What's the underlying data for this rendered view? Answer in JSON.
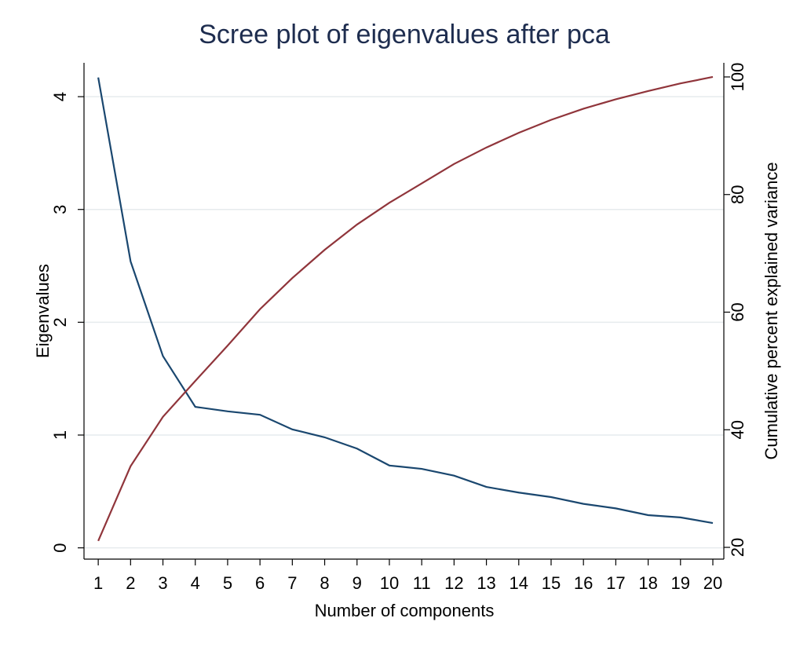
{
  "chart_data": {
    "type": "line",
    "title": "Scree plot of eigenvalues after pca",
    "x_label": "Number of components",
    "y_label": "Eigenvalues",
    "y2_label": "Cumulative percent explained variance",
    "x": [
      1,
      2,
      3,
      4,
      5,
      6,
      7,
      8,
      9,
      10,
      11,
      12,
      13,
      14,
      15,
      16,
      17,
      18,
      19,
      20
    ],
    "series": [
      {
        "name": "Eigenvalues",
        "color": "#1a476f",
        "values": [
          4.17,
          2.54,
          1.7,
          1.25,
          1.21,
          1.18,
          1.05,
          0.98,
          0.88,
          0.73,
          0.7,
          0.64,
          0.54,
          0.49,
          0.45,
          0.39,
          0.35,
          0.29,
          0.27,
          0.22
        ]
      },
      {
        "name": "Cumulative percent explained variance",
        "color": "#90353b",
        "axis": "y2",
        "values": [
          21.1,
          33.8,
          42.2,
          48.3,
          54.3,
          60.5,
          65.8,
          70.6,
          74.9,
          78.6,
          81.9,
          85.2,
          88.0,
          90.5,
          92.7,
          94.6,
          96.2,
          97.6,
          98.9,
          100
        ]
      }
    ],
    "xlim": [
      0.56,
      20.34
    ],
    "xticks": [
      1,
      2,
      3,
      4,
      5,
      6,
      7,
      8,
      9,
      10,
      11,
      12,
      13,
      14,
      15,
      16,
      17,
      18,
      19,
      20
    ],
    "ylim": [
      -0.1,
      4.3
    ],
    "yticks": [
      0,
      1,
      2,
      3,
      4
    ],
    "y2lim": [
      18,
      102.4
    ],
    "y2ticks": [
      20,
      40,
      60,
      80,
      100
    ],
    "grid": true
  }
}
